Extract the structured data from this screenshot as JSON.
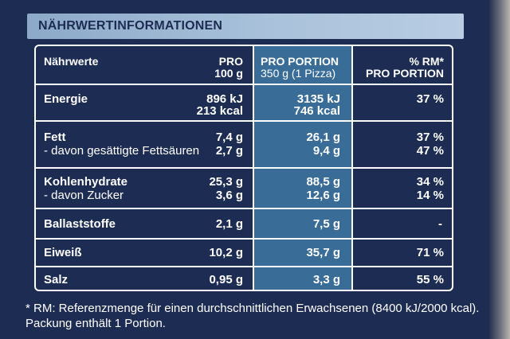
{
  "title": "NÄHRWERTINFORMATIONEN",
  "headers": {
    "nutrient": "Nährwerte",
    "per100_l1": "PRO",
    "per100_l2": "100 g",
    "portion_l1": "PRO PORTION",
    "portion_l2": "350 g (1 Pizza)",
    "rm_l1": "% RM*",
    "rm_l2": "PRO PORTION"
  },
  "rows": [
    {
      "name": "Energie",
      "per100": [
        "896 kJ",
        "213 kcal"
      ],
      "portion": [
        "3135 kJ",
        "746 kcal"
      ],
      "rm": "37 %"
    },
    {
      "name": "Fett",
      "per100": "7,4 g",
      "portion": "26,1 g",
      "rm": "37 %",
      "sub": {
        "name": "- davon gesättigte Fettsäuren",
        "per100": "2,7 g",
        "portion": "9,4 g",
        "rm": "47 %"
      }
    },
    {
      "name": "Kohlenhydrate",
      "per100": "25,3 g",
      "portion": "88,5 g",
      "rm": "34 %",
      "sub": {
        "name": "- davon Zucker",
        "per100": "3,6 g",
        "portion": "12,6 g",
        "rm": "14 %"
      }
    },
    {
      "name": "Ballaststoffe",
      "per100": "2,1 g",
      "portion": "7,5 g",
      "rm": "-"
    },
    {
      "name": "Eiweiß",
      "per100": "10,2 g",
      "portion": "35,7 g",
      "rm": "71 %"
    },
    {
      "name": "Salz",
      "per100": "0,95 g",
      "portion": "3,3 g",
      "rm": "55 %"
    }
  ],
  "footnote": "* RM: Referenzmenge für einen durchschnittlichen Erwachsenen (8400 kJ/2000 kcal).",
  "package_note": "Packung enthält 1 Portion.",
  "colors": {
    "background": "#1d2c52",
    "header_band": "#a9c1da",
    "highlight_column": "#3a6c98",
    "text": "#ffffff"
  }
}
